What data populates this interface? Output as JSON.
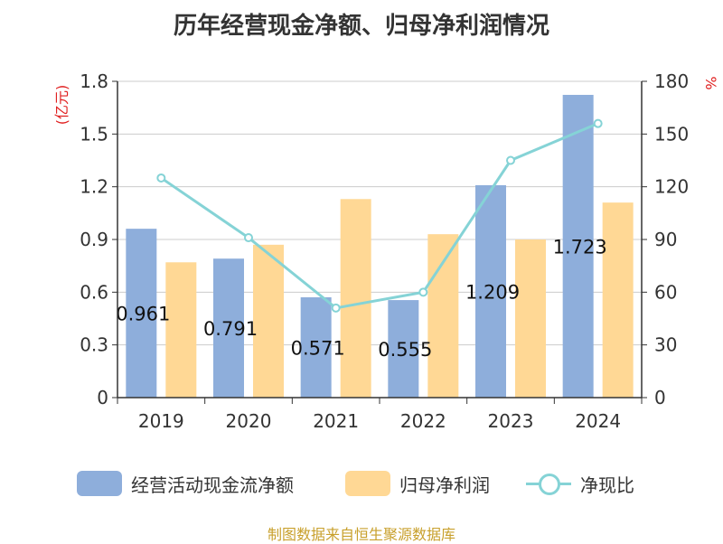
{
  "chart_data": {
    "type": "bar",
    "title": "历年经营现金净额、归母净利润情况",
    "categories": [
      "2019",
      "2020",
      "2021",
      "2022",
      "2023",
      "2024"
    ],
    "series": [
      {
        "name": "经营活动现金流净额",
        "type": "bar",
        "axis": "left",
        "color": "#8eaedb",
        "values": [
          0.961,
          0.791,
          0.571,
          0.555,
          1.209,
          1.723
        ]
      },
      {
        "name": "归母净利润",
        "type": "bar",
        "axis": "left",
        "color": "#ffd895",
        "values": [
          0.77,
          0.87,
          1.13,
          0.93,
          0.9,
          1.11
        ]
      },
      {
        "name": "净现比",
        "type": "line",
        "axis": "right",
        "color": "#85d3d6",
        "values": [
          125,
          91,
          51,
          60,
          135,
          156
        ]
      }
    ],
    "data_labels": [
      "0.961",
      "0.791",
      "0.571",
      "0.555",
      "1.209",
      "1.723"
    ],
    "left_axis": {
      "label": "(亿元)",
      "ylim": [
        0,
        1.8
      ],
      "ticks": [
        "0",
        "0.3",
        "0.6",
        "0.9",
        "1.2",
        "1.5",
        "1.8"
      ]
    },
    "right_axis": {
      "label": "%",
      "ylim": [
        0,
        180
      ],
      "ticks": [
        "0",
        "30",
        "60",
        "90",
        "120",
        "150",
        "180"
      ]
    },
    "grid": true,
    "legend_position": "bottom"
  },
  "legend": {
    "item1": "经营活动现金流净额",
    "item2": "归母净利润",
    "item3": "净现比"
  },
  "source": "制图数据来自恒生聚源数据库",
  "colors": {
    "bar1": "#8eaedb",
    "bar2": "#ffd895",
    "line": "#85d3d6",
    "axis_label": "#e02020"
  }
}
